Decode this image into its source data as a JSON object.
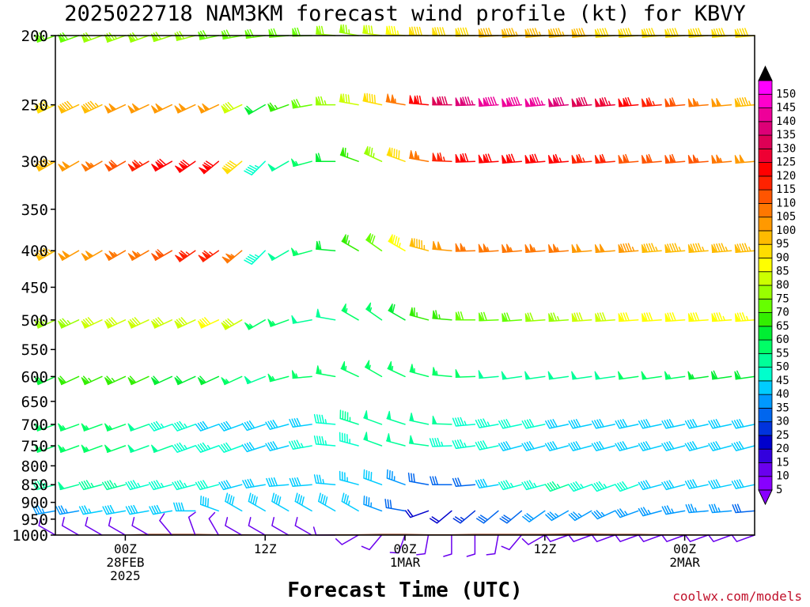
{
  "title": "2025022718 NAM3KM forecast wind profile (kt) for KBVY",
  "credit": "coolwx.com/models",
  "chart_data": {
    "type": "wind-barb-profile",
    "xlabel": "Forecast Time (UTC)",
    "y_ticks": [
      200,
      250,
      300,
      350,
      400,
      450,
      500,
      550,
      600,
      650,
      700,
      750,
      800,
      850,
      900,
      950,
      1000
    ],
    "ylim": [
      1000,
      200
    ],
    "x_ticks": [
      {
        "hour": 6,
        "lines": [
          "00Z",
          "28FEB",
          "2025"
        ]
      },
      {
        "hour": 18,
        "lines": [
          "12Z"
        ]
      },
      {
        "hour": 30,
        "lines": [
          "00Z",
          "1MAR"
        ]
      },
      {
        "hour": 42,
        "lines": [
          "12Z"
        ]
      },
      {
        "hour": 54,
        "lines": [
          "00Z",
          "2MAR"
        ]
      }
    ],
    "xlim": [
      0,
      60
    ],
    "colorbar_ticks": [
      5,
      10,
      15,
      20,
      25,
      30,
      35,
      40,
      45,
      50,
      55,
      60,
      65,
      70,
      75,
      80,
      85,
      90,
      95,
      100,
      105,
      110,
      115,
      120,
      125,
      130,
      135,
      140,
      145,
      150
    ],
    "colorbar_colors": [
      "#8800ff",
      "#6a00ee",
      "#3300dd",
      "#0000cc",
      "#0033dd",
      "#0066ee",
      "#0099ff",
      "#00ccff",
      "#00ffcc",
      "#00ff99",
      "#00ff66",
      "#00ee33",
      "#33ee00",
      "#66ff00",
      "#99ff00",
      "#ccff00",
      "#ffff00",
      "#ffdd00",
      "#ffbb00",
      "#ff9900",
      "#ff7700",
      "#ff5500",
      "#ff2200",
      "#ff0000",
      "#ee0033",
      "#dd0055",
      "#dd0077",
      "#ee0099",
      "#ff00cc",
      "#ff00ff"
    ],
    "barb_times": [
      0,
      2,
      4,
      6,
      8,
      10,
      12,
      14,
      16,
      18,
      20,
      22,
      24,
      26,
      28,
      30,
      32,
      34,
      36,
      38,
      40,
      42,
      44,
      46,
      48,
      50,
      52,
      54,
      56,
      58,
      60
    ],
    "barb_levels": [
      1000,
      925,
      850,
      750,
      700,
      600,
      500,
      400,
      300,
      250,
      200
    ],
    "wind_speed_kt": [
      [
        10,
        10,
        10,
        10,
        10,
        10,
        10,
        10,
        10,
        10,
        10,
        10,
        10,
        10,
        10,
        10,
        10,
        10,
        10,
        10,
        10,
        10,
        10,
        10,
        10,
        10,
        10,
        10,
        10,
        10,
        10
      ],
      [
        33,
        35,
        37,
        38,
        38,
        38,
        38,
        38,
        39,
        40,
        40,
        40,
        38,
        36,
        33,
        30,
        20,
        18,
        25,
        30,
        30,
        31,
        33,
        34,
        33,
        33,
        35,
        35,
        35,
        35,
        30
      ],
      [
        47,
        48,
        47,
        46,
        45,
        45,
        44,
        42,
        40,
        38,
        38,
        38,
        37,
        37,
        38,
        35,
        30,
        28,
        30,
        38,
        43,
        45,
        46,
        45,
        43,
        42,
        40,
        40,
        38,
        38,
        38
      ],
      [
        55,
        55,
        55,
        52,
        50,
        48,
        45,
        43,
        41,
        40,
        40,
        45,
        45,
        45,
        48,
        50,
        48,
        45,
        43,
        42,
        40,
        40,
        40,
        40,
        40,
        40,
        38,
        38,
        38,
        40,
        40
      ],
      [
        55,
        55,
        55,
        53,
        48,
        45,
        43,
        40,
        40,
        38,
        38,
        40,
        45,
        47,
        48,
        50,
        50,
        48,
        45,
        43,
        42,
        42,
        40,
        40,
        40,
        40,
        40,
        40,
        40,
        40,
        40
      ],
      [
        60,
        62,
        63,
        63,
        62,
        60,
        60,
        58,
        55,
        50,
        55,
        55,
        55,
        55,
        53,
        55,
        55,
        53,
        52,
        50,
        50,
        50,
        50,
        50,
        50,
        52,
        52,
        54,
        56,
        58,
        58
      ],
      [
        75,
        75,
        78,
        78,
        80,
        80,
        80,
        82,
        80,
        55,
        55,
        50,
        50,
        53,
        55,
        60,
        63,
        65,
        68,
        70,
        70,
        72,
        75,
        78,
        80,
        82,
        82,
        82,
        82,
        83,
        85
      ],
      [
        95,
        98,
        100,
        103,
        105,
        110,
        113,
        115,
        105,
        45,
        50,
        55,
        60,
        65,
        70,
        85,
        95,
        100,
        103,
        105,
        105,
        105,
        103,
        100,
        98,
        96,
        95,
        95,
        95,
        95,
        93
      ],
      [
        95,
        100,
        105,
        110,
        115,
        118,
        118,
        120,
        88,
        45,
        50,
        55,
        60,
        65,
        75,
        90,
        105,
        115,
        120,
        120,
        120,
        118,
        116,
        114,
        112,
        110,
        110,
        108,
        106,
        103,
        100
      ],
      [
        90,
        92,
        95,
        100,
        100,
        100,
        100,
        100,
        80,
        60,
        65,
        70,
        75,
        80,
        90,
        105,
        120,
        130,
        135,
        138,
        138,
        136,
        132,
        128,
        124,
        120,
        115,
        110,
        105,
        100,
        95
      ],
      [
        68,
        70,
        72,
        73,
        72,
        72,
        71,
        70,
        70,
        70,
        70,
        70,
        72,
        75,
        78,
        85,
        88,
        90,
        90,
        92,
        93,
        93,
        93,
        92,
        90,
        89,
        88,
        88,
        88,
        88,
        88
      ]
    ],
    "wind_dir_deg": [
      [
        300,
        300,
        300,
        300,
        300,
        320,
        340,
        330,
        300,
        300,
        300,
        300,
        270,
        240,
        220,
        200,
        190,
        180,
        180,
        190,
        220,
        240,
        250,
        250,
        250,
        250,
        250,
        250,
        250,
        250,
        250
      ],
      [
        260,
        260,
        260,
        260,
        260,
        260,
        270,
        290,
        300,
        300,
        300,
        300,
        300,
        300,
        290,
        280,
        250,
        230,
        230,
        230,
        230,
        235,
        240,
        240,
        245,
        250,
        255,
        260,
        265,
        265,
        265
      ],
      [
        255,
        255,
        255,
        255,
        255,
        255,
        255,
        255,
        255,
        260,
        265,
        265,
        275,
        285,
        290,
        290,
        280,
        270,
        265,
        260,
        255,
        255,
        250,
        250,
        250,
        250,
        255,
        255,
        258,
        258,
        258
      ],
      [
        250,
        250,
        250,
        250,
        250,
        250,
        250,
        250,
        250,
        252,
        255,
        260,
        275,
        285,
        290,
        285,
        278,
        268,
        262,
        258,
        255,
        255,
        255,
        255,
        255,
        255,
        255,
        255,
        255,
        255,
        255
      ],
      [
        250,
        250,
        250,
        250,
        250,
        250,
        250,
        250,
        250,
        252,
        255,
        262,
        275,
        288,
        290,
        288,
        282,
        272,
        265,
        260,
        258,
        258,
        258,
        258,
        258,
        258,
        258,
        258,
        258,
        258,
        258
      ],
      [
        245,
        245,
        245,
        245,
        245,
        245,
        245,
        245,
        245,
        248,
        255,
        265,
        280,
        295,
        300,
        295,
        285,
        275,
        268,
        265,
        262,
        262,
        262,
        262,
        262,
        262,
        262,
        262,
        262,
        262,
        262
      ],
      [
        245,
        245,
        245,
        245,
        245,
        245,
        245,
        245,
        240,
        240,
        250,
        260,
        280,
        300,
        305,
        300,
        285,
        275,
        270,
        268,
        266,
        266,
        266,
        266,
        266,
        266,
        266,
        266,
        266,
        266,
        266
      ],
      [
        240,
        240,
        240,
        240,
        240,
        240,
        235,
        235,
        230,
        225,
        240,
        255,
        275,
        300,
        305,
        300,
        285,
        275,
        268,
        266,
        265,
        265,
        265,
        265,
        265,
        265,
        265,
        265,
        265,
        265,
        265
      ],
      [
        240,
        240,
        240,
        240,
        240,
        240,
        235,
        230,
        230,
        225,
        240,
        255,
        270,
        290,
        295,
        290,
        280,
        272,
        268,
        266,
        265,
        265,
        265,
        265,
        265,
        265,
        265,
        265,
        265,
        265,
        265
      ],
      [
        245,
        245,
        245,
        245,
        245,
        245,
        245,
        245,
        245,
        240,
        250,
        260,
        270,
        280,
        282,
        280,
        275,
        270,
        268,
        266,
        265,
        265,
        265,
        265,
        265,
        265,
        265,
        265,
        265,
        265,
        265
      ],
      [
        250,
        250,
        250,
        250,
        250,
        252,
        255,
        258,
        260,
        262,
        265,
        268,
        275,
        280,
        278,
        275,
        272,
        270,
        268,
        266,
        265,
        265,
        265,
        265,
        265,
        265,
        265,
        265,
        265,
        265,
        265
      ]
    ],
    "ground_pressure_hpa": [
      998,
      998,
      998,
      998,
      996,
      996,
      996,
      997,
      997,
      998,
      998,
      998,
      997,
      997,
      996,
      996,
      997,
      997,
      996,
      996,
      996,
      996,
      995,
      995,
      996,
      996,
      997,
      997,
      998,
      998,
      998
    ]
  }
}
